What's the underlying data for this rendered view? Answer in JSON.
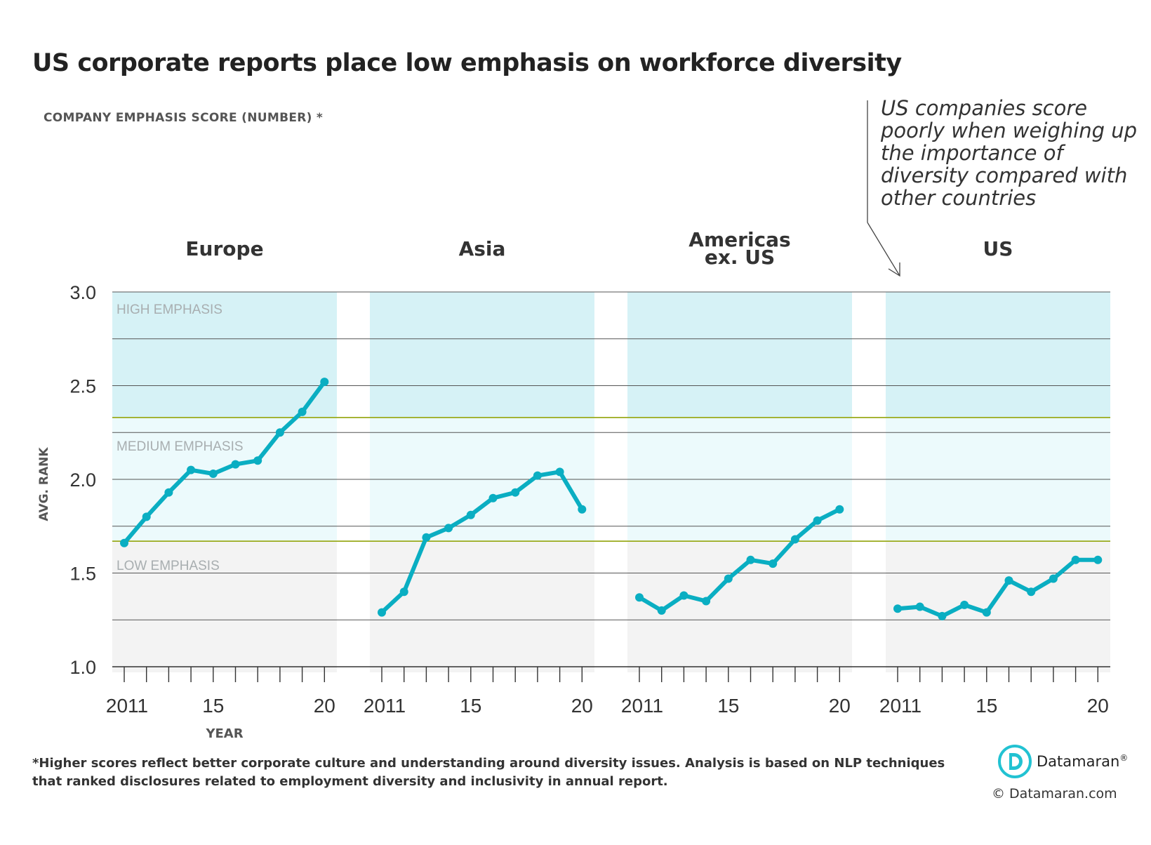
{
  "title": "US corporate reports place low emphasis on workforce diversity",
  "subtitle": "COMPANY EMPHASIS SCORE (NUMBER) *",
  "annotation": "US companies score poorly when weighing up the importance of diversity compared with other countries",
  "footnote": "*Higher scores reflect better corporate culture and understanding around diversity issues. Analysis is based on NLP techniques that ranked disclosures related to employment diversity and inclusivity in annual report.",
  "brand": "Datamaran",
  "brand_mark": "®",
  "copyright": "© Datamaran.com",
  "colors": {
    "line": "#0aaec2",
    "high_band": "#d6f2f6",
    "medium_band": "#ecfafc",
    "low_band": "#f3f3f3",
    "threshold": "#9aaa1c",
    "grid": "#555555"
  },
  "chart_data": {
    "type": "line",
    "ylabel": "AVG. RANK",
    "xlabel": "YEAR",
    "ylim": [
      1.0,
      3.0
    ],
    "yticks": [
      "1.0",
      "1.5",
      "2.0",
      "2.5",
      "3.0"
    ],
    "zones": [
      {
        "label": "HIGH EMPHASIS",
        "from": 2.33,
        "to": 3.0
      },
      {
        "label": "MEDIUM EMPHASIS",
        "from": 1.67,
        "to": 2.33
      },
      {
        "label": "LOW EMPHASIS",
        "from": 1.0,
        "to": 1.67
      }
    ],
    "x": [
      2011,
      2012,
      2013,
      2014,
      2015,
      2016,
      2017,
      2018,
      2019,
      2020
    ],
    "x_tick_labels": [
      "2011",
      "15",
      "20"
    ],
    "panels": [
      {
        "name": "Europe",
        "values": [
          1.66,
          1.8,
          1.93,
          2.05,
          2.03,
          2.08,
          2.1,
          2.25,
          2.36,
          2.52
        ]
      },
      {
        "name": "Asia",
        "values": [
          1.29,
          1.4,
          1.69,
          1.74,
          1.81,
          1.9,
          1.93,
          2.02,
          2.04,
          1.84
        ]
      },
      {
        "name": "Americas ex. US",
        "values": [
          1.37,
          1.3,
          1.38,
          1.35,
          1.47,
          1.57,
          1.55,
          1.68,
          1.78,
          1.84
        ]
      },
      {
        "name": "US",
        "values": [
          1.31,
          1.32,
          1.27,
          1.33,
          1.29,
          1.46,
          1.4,
          1.47,
          1.57,
          1.57
        ]
      }
    ]
  }
}
